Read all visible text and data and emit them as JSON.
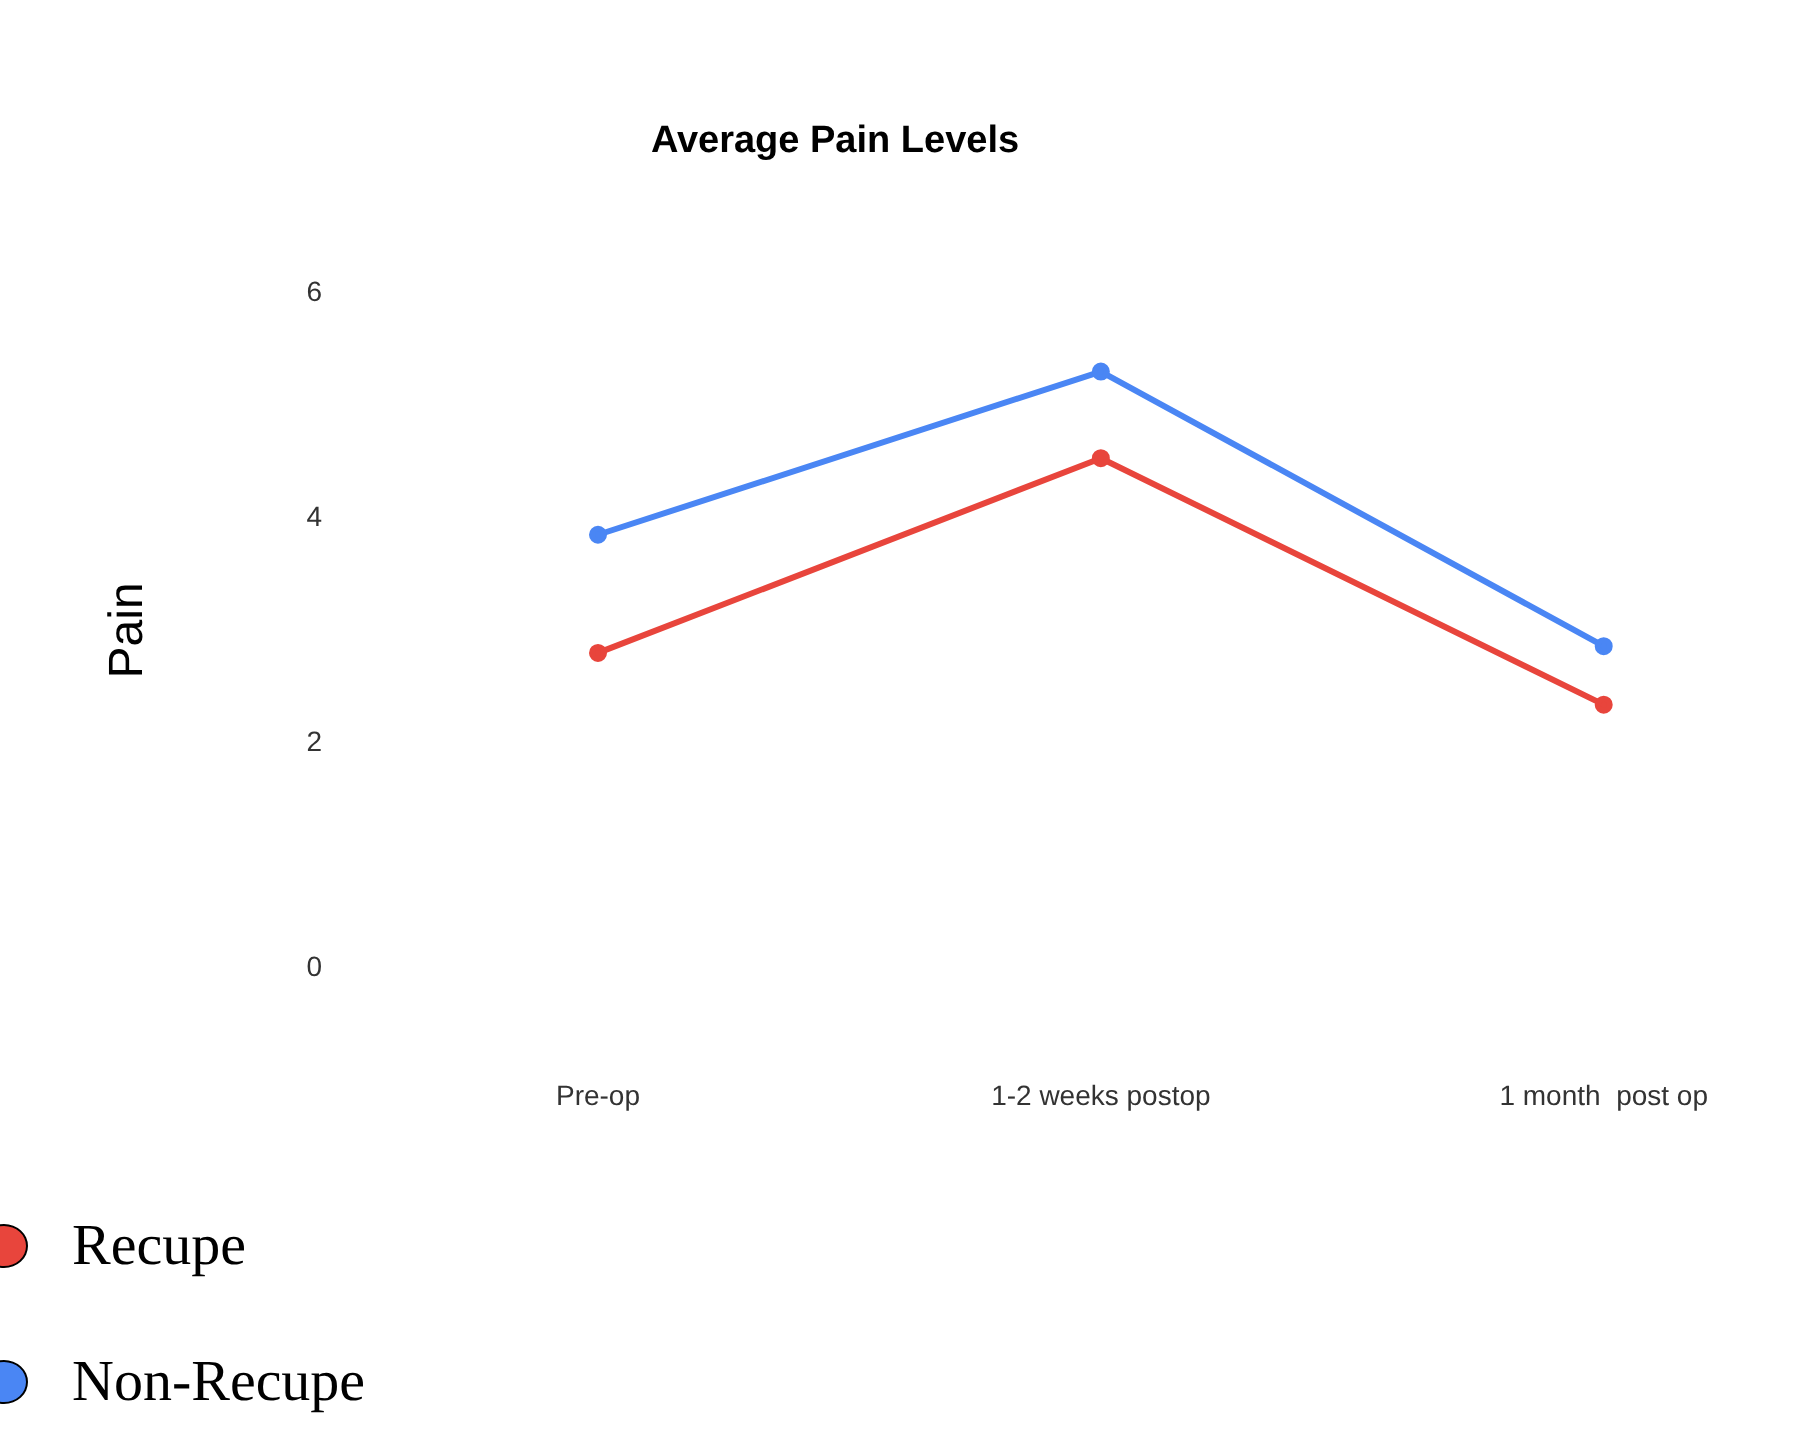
{
  "chart_data": {
    "type": "line",
    "title": "Average Pain Levels",
    "ylabel": "Pain",
    "categories": [
      "Pre-op",
      "1-2 weeks postop",
      "1 month  post op"
    ],
    "series": [
      {
        "name": "Recupe",
        "color": "#e8453c",
        "values": [
          2.8,
          4.53,
          2.34
        ]
      },
      {
        "name": "Non-Recupe",
        "color": "#4a86f4",
        "values": [
          3.85,
          5.3,
          2.86
        ]
      }
    ],
    "ylim": [
      0,
      6
    ],
    "yticks": [
      0,
      2,
      4,
      6
    ],
    "grid": false,
    "legend": "bottom left",
    "marker": "circle",
    "line_style": "solid"
  }
}
